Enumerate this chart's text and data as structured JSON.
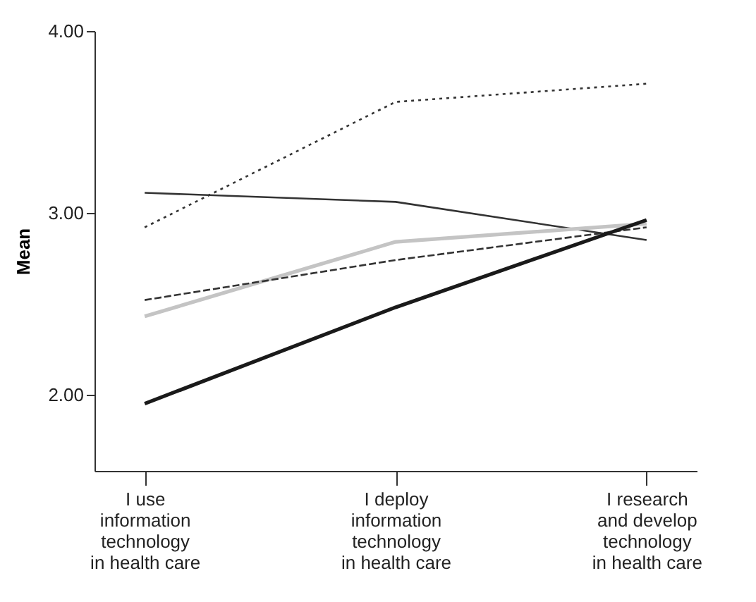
{
  "chart_data": {
    "type": "line",
    "ylabel": "Mean",
    "categories": [
      "I use\ninformation\ntechnology\nin health care",
      "I deploy\ninformation\ntechnology\nin health care",
      "I research\nand develop\ntechnology\nin health care"
    ],
    "series": [
      {
        "color": "#333333",
        "line_style": "dotted",
        "values": [
          2.92,
          3.61,
          3.71
        ]
      },
      {
        "color": "#333333",
        "line_style": "solid",
        "values": [
          3.11,
          3.06,
          2.85
        ]
      },
      {
        "color": "#c4c4c4",
        "line_style": "solid",
        "values": [
          2.43,
          2.84,
          2.94
        ]
      },
      {
        "color": "#333333",
        "line_style": "dashed",
        "values": [
          2.52,
          2.74,
          2.92
        ]
      },
      {
        "color": "#1a1a1a",
        "line_style": "solid",
        "values": [
          1.95,
          2.48,
          2.96
        ]
      }
    ],
    "ylim": [
      1.58,
      4.0
    ],
    "yticks": [
      {
        "value": 2,
        "label": "2.00"
      },
      {
        "value": 3,
        "label": "3.00"
      },
      {
        "value": 4,
        "label": "4.00"
      }
    ],
    "grid": false,
    "marker": "none"
  }
}
